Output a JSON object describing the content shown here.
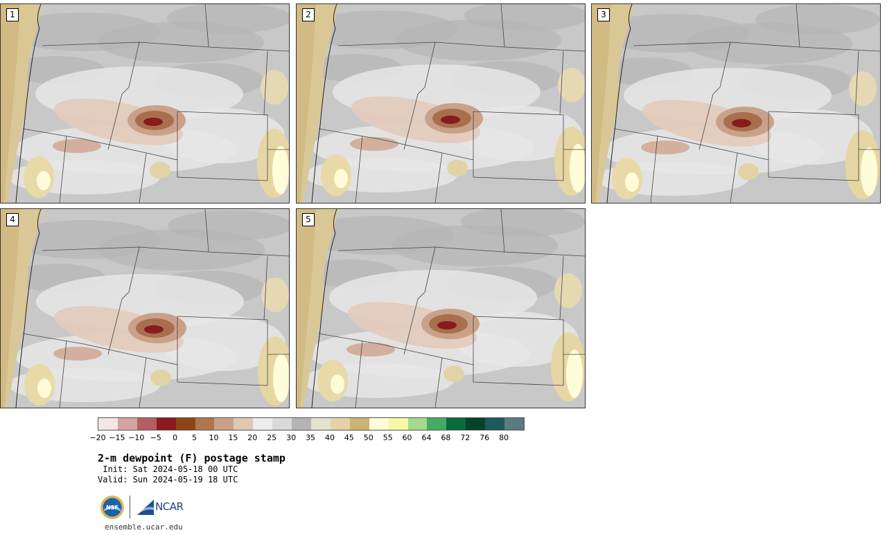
{
  "panels": [
    {
      "label": "1",
      "variant": 0
    },
    {
      "label": "2",
      "variant": 1
    },
    {
      "label": "3",
      "variant": 2
    },
    {
      "label": "4",
      "variant": 3
    },
    {
      "label": "5",
      "variant": 4
    }
  ],
  "colorbar": {
    "colors": [
      "#f2e7e4",
      "#d5a2a2",
      "#b35f62",
      "#8b1a1f",
      "#8c4616",
      "#ae7750",
      "#c8a187",
      "#e1c7b6",
      "#ececec",
      "#d9d9d9",
      "#b4b4b4",
      "#e3e1cf",
      "#e4d3a7",
      "#cbb275",
      "#fffcd9",
      "#f6f6a7",
      "#a5d98c",
      "#43ac63",
      "#086d3c",
      "#07432b",
      "#1c5a5c",
      "#587c81"
    ],
    "tick_labels": [
      "−20",
      "−15",
      "−10",
      "−5",
      "0",
      "5",
      "10",
      "15",
      "20",
      "25",
      "30",
      "35",
      "40",
      "45",
      "50",
      "55",
      "60",
      "64",
      "68",
      "72",
      "76",
      "80"
    ]
  },
  "title": "2-m dewpoint (F) postage stamp",
  "init": " Init: Sat 2024-05-18 00 UTC",
  "valid": "Valid: Sun 2024-05-19 18 UTC",
  "logos": {
    "nsf": "NSF",
    "ncar": "NCAR"
  },
  "site": "ensemble.ucar.edu"
}
